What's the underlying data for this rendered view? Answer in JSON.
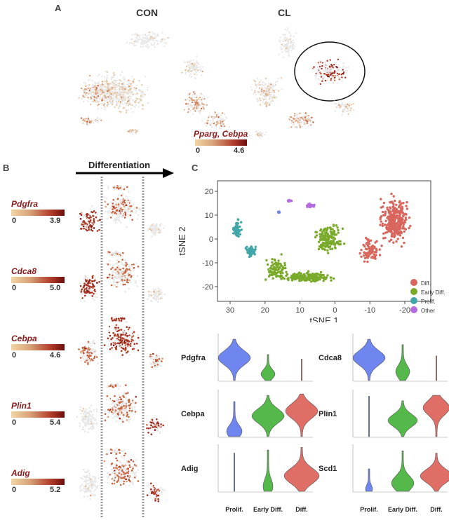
{
  "panelA": {
    "letter": "A",
    "titles": {
      "left": "CON",
      "right": "CL"
    },
    "legend": {
      "gene_label": "Pparg, Cebpa",
      "min": "0",
      "max": "4.6"
    }
  },
  "panelB": {
    "letter": "B",
    "arrow_label": "Differentiation",
    "genes": [
      {
        "name": "Pdgfra",
        "min": "0",
        "max": "3.9"
      },
      {
        "name": "Cdca8",
        "min": "0",
        "max": "5.0"
      },
      {
        "name": "Cebpa",
        "min": "0",
        "max": "4.6"
      },
      {
        "name": "Plin1",
        "min": "0",
        "max": "5.4"
      },
      {
        "name": "Adig",
        "min": "0",
        "max": "5.2"
      }
    ]
  },
  "panelC": {
    "letter": "C",
    "tsne": {
      "xlabel": "tSNE 1",
      "ylabel": "tSNE 2",
      "xticks": [
        "30",
        "20",
        "10",
        "0",
        "-10",
        "-20"
      ],
      "yticks": [
        "20",
        "10",
        "0",
        "-10",
        "-20"
      ],
      "legend": [
        {
          "label": "Diff.",
          "color": "#d9665c"
        },
        {
          "label": "Early Diff.",
          "color": "#7aaa2a"
        },
        {
          "label": "Prolif.",
          "color": "#41a6a8"
        },
        {
          "label": "Other",
          "color": "#b56be0"
        }
      ]
    },
    "violins": {
      "left": [
        {
          "gene": "Pdgfra"
        },
        {
          "gene": "Cebpa"
        },
        {
          "gene": "Adig"
        }
      ],
      "right": [
        {
          "gene": "Cdca8"
        },
        {
          "gene": "Plin1"
        },
        {
          "gene": "Scd1"
        }
      ],
      "categories": [
        "Prolif.",
        "Early Diff.",
        "Diff."
      ],
      "colors": {
        "prolif": "#6f86f0",
        "early": "#55b84a",
        "diff": "#df6f66"
      }
    }
  }
}
